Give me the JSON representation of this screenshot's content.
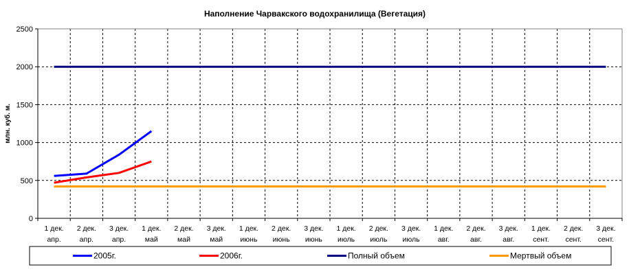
{
  "chart_data": {
    "type": "line",
    "title": "Наполнение Чарвакского водохранилища  (Вегетация)",
    "xlabel": "",
    "ylabel": "млн. куб. м.",
    "ylim": [
      0,
      2500
    ],
    "yticks": [
      0,
      500,
      1000,
      1500,
      2000,
      2500
    ],
    "grid": true,
    "legend_position": "bottom",
    "categories": [
      [
        "1 дек.",
        "апр."
      ],
      [
        "2 дек.",
        "апр."
      ],
      [
        "3 дек.",
        "апр."
      ],
      [
        "1 дек.",
        "май"
      ],
      [
        "2 дек.",
        "май"
      ],
      [
        "3 дек.",
        "май"
      ],
      [
        "1 дек.",
        "июнь"
      ],
      [
        "2 дек.",
        "июнь"
      ],
      [
        "3 дек.",
        "июнь"
      ],
      [
        "1 дек.",
        "июль"
      ],
      [
        "2 дек.",
        "июль"
      ],
      [
        "3 дек.",
        "июль"
      ],
      [
        "1 дек.",
        "авг."
      ],
      [
        "2 дек.",
        "авг."
      ],
      [
        "3 дек.",
        "авг."
      ],
      [
        "1 дек.",
        "сент."
      ],
      [
        "2 дек.",
        "сент."
      ],
      [
        "3 дек.",
        "сент."
      ]
    ],
    "series": [
      {
        "name": "2005г.",
        "color": "#0000ff",
        "values": [
          560,
          590,
          840,
          1150,
          null,
          null,
          null,
          null,
          null,
          null,
          null,
          null,
          null,
          null,
          null,
          null,
          null,
          null
        ]
      },
      {
        "name": "2006г.",
        "color": "#ff0000",
        "values": [
          470,
          540,
          600,
          750,
          null,
          null,
          null,
          null,
          null,
          null,
          null,
          null,
          null,
          null,
          null,
          null,
          null,
          null
        ]
      },
      {
        "name": "Полный объем",
        "color": "#000080",
        "values": [
          2000,
          2000,
          2000,
          2000,
          2000,
          2000,
          2000,
          2000,
          2000,
          2000,
          2000,
          2000,
          2000,
          2000,
          2000,
          2000,
          2000,
          2000
        ]
      },
      {
        "name": "Мертвый объем",
        "color": "#ff9900",
        "values": [
          420,
          420,
          420,
          420,
          420,
          420,
          420,
          420,
          420,
          420,
          420,
          420,
          420,
          420,
          420,
          420,
          420,
          420
        ]
      }
    ]
  }
}
